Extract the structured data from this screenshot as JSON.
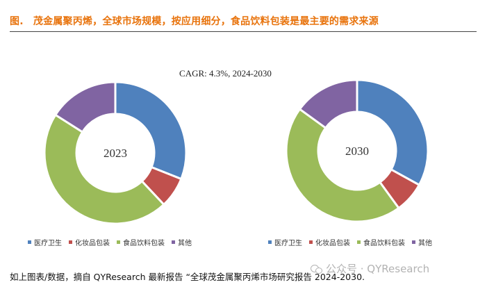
{
  "title": "图.　茂金属聚丙烯，全球市场规模，按应用细分，食品饮料包装是最主要的需求来源",
  "subtitle": "CAGR:  4.3%, 2024-2030",
  "colors": {
    "title": "#e8730c",
    "medical": "#4f81bd",
    "cosmetics": "#c0504d",
    "food": "#9bbb59",
    "other": "#8064a2"
  },
  "chart_data": [
    {
      "type": "pie",
      "variant": "donut",
      "center_label": "2023",
      "categories": [
        "医疗卫生",
        "化妆品包装",
        "食品饮料包装",
        "其他"
      ],
      "values": [
        31,
        7,
        46,
        16
      ],
      "legend_position": "bottom"
    },
    {
      "type": "pie",
      "variant": "donut",
      "center_label": "2030",
      "categories": [
        "医疗卫生",
        "化妆品包装",
        "食品饮料包装",
        "其他"
      ],
      "values": [
        33,
        7,
        45,
        15
      ],
      "legend_position": "bottom"
    }
  ],
  "footer": "如上图表/数据，摘自 QYResearch 最新报告 “全球茂金属聚丙烯市场研究报告 2024-2030.",
  "watermark": "公众号 · QYResearch"
}
